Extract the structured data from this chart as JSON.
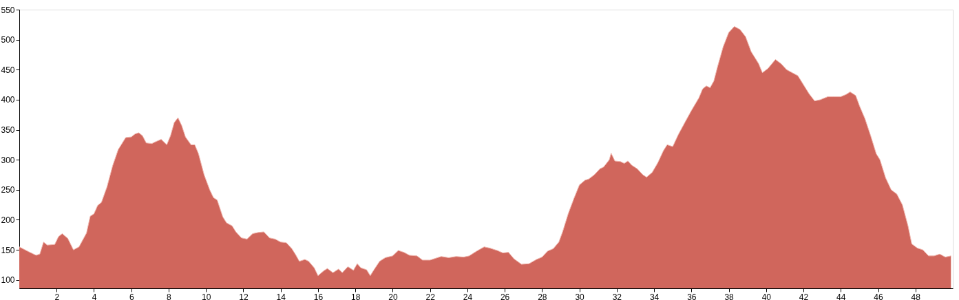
{
  "chart_data": {
    "type": "area",
    "x": [
      0,
      0.5,
      0.9,
      1.1,
      1.3,
      1.5,
      1.9,
      2.1,
      2.3,
      2.6,
      2.9,
      3.2,
      3.6,
      3.8,
      4.0,
      4.2,
      4.4,
      4.7,
      5.0,
      5.3,
      5.7,
      6.0,
      6.2,
      6.4,
      6.6,
      6.8,
      7.1,
      7.3,
      7.6,
      7.9,
      8.1,
      8.3,
      8.5,
      8.7,
      8.9,
      9.2,
      9.4,
      9.6,
      9.9,
      10.2,
      10.4,
      10.6,
      10.9,
      11.1,
      11.4,
      11.6,
      11.9,
      12.2,
      12.5,
      12.8,
      13.1,
      13.4,
      13.7,
      14.0,
      14.3,
      14.6,
      14.8,
      15.0,
      15.3,
      15.5,
      15.8,
      16.0,
      16.3,
      16.5,
      16.8,
      17.1,
      17.3,
      17.6,
      17.9,
      18.1,
      18.3,
      18.6,
      18.8,
      19.0,
      19.3,
      19.6,
      20.0,
      20.3,
      20.6,
      20.9,
      21.3,
      21.6,
      22.0,
      22.3,
      22.6,
      23.0,
      23.4,
      23.8,
      24.1,
      24.5,
      24.9,
      25.2,
      25.6,
      25.9,
      26.2,
      26.5,
      26.9,
      27.3,
      27.7,
      28.0,
      28.3,
      28.6,
      28.9,
      29.1,
      29.4,
      29.7,
      30.0,
      30.3,
      30.5,
      30.8,
      31.1,
      31.3,
      31.6,
      31.7,
      31.9,
      32.2,
      32.4,
      32.6,
      32.8,
      33.1,
      33.4,
      33.6,
      33.9,
      34.2,
      34.5,
      34.7,
      35.0,
      35.3,
      35.7,
      36.0,
      36.4,
      36.6,
      36.8,
      37.0,
      37.2,
      37.4,
      37.7,
      38.0,
      38.3,
      38.6,
      38.9,
      39.2,
      39.6,
      39.8,
      40.1,
      40.5,
      40.8,
      41.1,
      41.4,
      41.7,
      42.0,
      42.3,
      42.6,
      42.9,
      43.3,
      43.6,
      44.0,
      44.3,
      44.5,
      44.8,
      45.0,
      45.3,
      45.6,
      45.9,
      46.1,
      46.4,
      46.7,
      47.0,
      47.3,
      47.6,
      47.8,
      48.1,
      48.4,
      48.7,
      49.0,
      49.3,
      49.6,
      49.9
    ],
    "series": [
      {
        "color": "#d0665c",
        "values": [
          155,
          147,
          141,
          143,
          163,
          158,
          159,
          172,
          177,
          169,
          150,
          155,
          178,
          206,
          210,
          224,
          229,
          255,
          290,
          317,
          337,
          338,
          343,
          345,
          340,
          328,
          327,
          330,
          334,
          325,
          340,
          362,
          370,
          357,
          338,
          325,
          325,
          310,
          275,
          250,
          237,
          233,
          205,
          195,
          190,
          180,
          170,
          168,
          177,
          179,
          180,
          170,
          168,
          163,
          162,
          152,
          142,
          131,
          134,
          131,
          120,
          107,
          115,
          119,
          112,
          118,
          112,
          122,
          116,
          127,
          120,
          117,
          107,
          117,
          131,
          137,
          140,
          149,
          146,
          141,
          140,
          133,
          133,
          136,
          139,
          137,
          139,
          138,
          140,
          148,
          155,
          153,
          149,
          145,
          146,
          135,
          126,
          127,
          134,
          138,
          148,
          152,
          163,
          180,
          210,
          235,
          258,
          266,
          268,
          275,
          285,
          288,
          300,
          311,
          298,
          297,
          294,
          298,
          291,
          285,
          275,
          271,
          279,
          295,
          315,
          325,
          322,
          342,
          365,
          382,
          403,
          418,
          423,
          420,
          431,
          455,
          488,
          512,
          522,
          517,
          505,
          480,
          460,
          445,
          452,
          467,
          460,
          450,
          445,
          440,
          425,
          410,
          398,
          400,
          405,
          405,
          405,
          409,
          413,
          407,
          390,
          368,
          340,
          310,
          300,
          270,
          250,
          243,
          225,
          190,
          160,
          153,
          150,
          140,
          140,
          143,
          138,
          140
        ]
      }
    ],
    "xlim": [
      0,
      50
    ],
    "xticks": [
      2,
      4,
      6,
      8,
      10,
      12,
      14,
      16,
      18,
      20,
      22,
      24,
      26,
      28,
      30,
      32,
      34,
      36,
      38,
      40,
      42,
      44,
      46,
      48
    ],
    "ylim": [
      86,
      550
    ],
    "yticks": [
      100,
      150,
      200,
      250,
      300,
      350,
      400,
      450,
      500,
      550
    ],
    "grid": false
  }
}
